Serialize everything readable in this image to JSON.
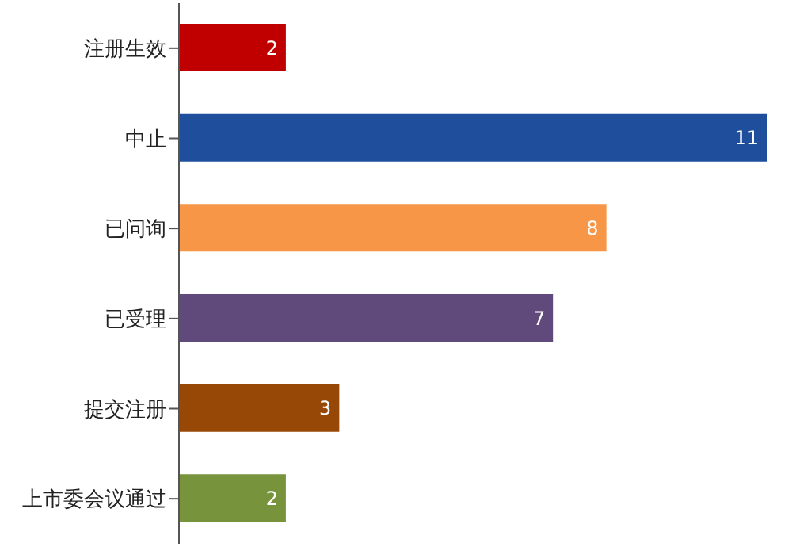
{
  "chart_data": {
    "type": "bar",
    "orientation": "horizontal",
    "categories": [
      "注册生效",
      "中止",
      "已问询",
      "已受理",
      "提交注册",
      "上市委会议通过"
    ],
    "values": [
      2,
      11,
      8,
      7,
      3,
      2
    ],
    "colors": [
      "#c00000",
      "#1f4e9c",
      "#f79646",
      "#604a7b",
      "#974806",
      "#77933c"
    ],
    "data_labels": true,
    "grid": false,
    "legend": false
  }
}
